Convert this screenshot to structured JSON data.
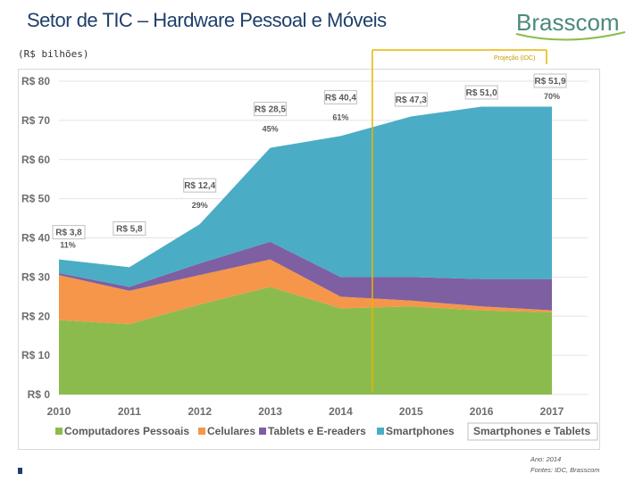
{
  "page": {
    "title": "Setor de TIC – Hardware Pessoal e Móveis",
    "logo_text": "Brasscom",
    "unit_label": "(R$ bilhões)",
    "projection_label": "Projeção (IDC)",
    "footer_line1": "Ano: 2014",
    "footer_line2": "Fontes: IDC, Brasscom",
    "colors": {
      "title": "#1f3f6b",
      "projection_line": "#e8b400",
      "computadores": "#8cbb4d",
      "celulares": "#f5964a",
      "tablets": "#7e5fa1",
      "smartphones": "#4bacc6"
    }
  },
  "chart_data": {
    "type": "area",
    "stacked": true,
    "x": [
      "2010",
      "2011",
      "2012",
      "2013",
      "2014",
      "2015",
      "2016",
      "2017"
    ],
    "y_ticks": [
      "R$ 0",
      "R$ 10",
      "R$ 20",
      "R$ 30",
      "R$ 40",
      "R$ 50",
      "R$ 60",
      "R$ 70",
      "R$ 80"
    ],
    "ylim": [
      0,
      80
    ],
    "grid": true,
    "series": [
      {
        "name": "Computadores Pessoais",
        "color": "#8cbb4d",
        "values": [
          19,
          18,
          23,
          27.5,
          22,
          22.5,
          21.5,
          21
        ]
      },
      {
        "name": "Celulares",
        "color": "#f5964a",
        "values": [
          11.5,
          8.5,
          7.5,
          7,
          3,
          1.5,
          1,
          0.5
        ]
      },
      {
        "name": "Tablets e E-readers",
        "color": "#7e5fa1",
        "values": [
          0.5,
          1,
          3,
          4.5,
          5,
          6,
          7,
          8
        ]
      },
      {
        "name": "Smartphones",
        "color": "#4bacc6",
        "values": [
          3.5,
          5,
          10,
          24,
          36,
          41,
          44,
          44
        ]
      }
    ],
    "smartphone_tablet_labels": [
      {
        "year": "2010",
        "value": "R$ 3,8",
        "share": "11%"
      },
      {
        "year": "2011",
        "value": "R$ 5,8",
        "share": ""
      },
      {
        "year": "2012",
        "value": "R$ 12,4",
        "share": "29%"
      },
      {
        "year": "2013",
        "value": "R$ 28,5",
        "share": "45%"
      },
      {
        "year": "2014",
        "value": "R$ 40,4",
        "share": "61%"
      },
      {
        "year": "2015",
        "value": "R$ 47,3",
        "share": ""
      },
      {
        "year": "2016",
        "value": "R$ 51,0",
        "share": ""
      },
      {
        "year": "2017",
        "value": "R$ 51,9",
        "share": "70%"
      }
    ],
    "projection_start": 2014.45,
    "legend": {
      "position": "bottom",
      "entries": [
        "Computadores Pessoais",
        "Celulares",
        "Tablets e E-readers",
        "Smartphones"
      ],
      "boxed_entry": "Smartphones e Tablets"
    }
  }
}
